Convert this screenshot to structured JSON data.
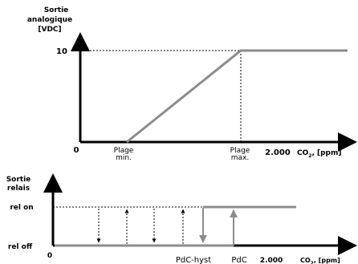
{
  "top_graph": {
    "y_axis_label": [
      "Sortie",
      "analogique",
      "[VDC]"
    ],
    "y_tick_value": "10",
    "origin_label": "0",
    "x_label_min": [
      "Plage",
      "min."
    ],
    "x_label_max": [
      "Plage",
      "max."
    ],
    "x_tick_value": "2.000",
    "x_axis_label": {
      "prefix": "CO",
      "subscript": "2",
      "suffix": ", [ppm]"
    }
  },
  "bottom_graph": {
    "y_axis_label": [
      "Sortie",
      "relais"
    ],
    "level_on_label": "rel on",
    "level_off_label": "rel off",
    "origin_label": "0",
    "x_label_hyst": "PdC-hyst",
    "x_label_pdc": "PdC",
    "x_tick_value": "2.000",
    "x_axis_label": {
      "prefix": "CO",
      "subscript": "2",
      "suffix": ", [ppm]"
    }
  },
  "colors": {
    "axis": "#000000",
    "curve": "#8c8c8c",
    "dashed": "#000000"
  }
}
